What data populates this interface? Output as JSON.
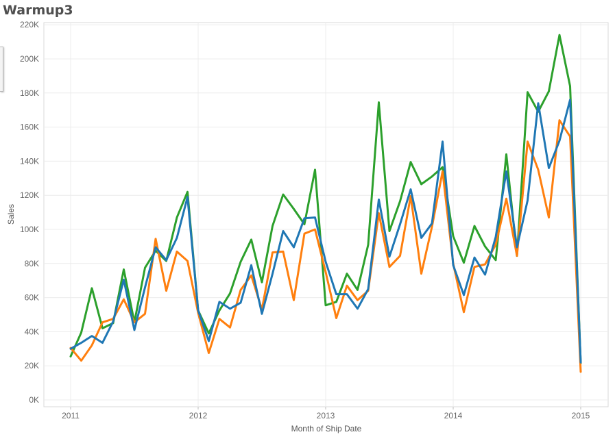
{
  "title": "Warmup3",
  "chart_data": {
    "type": "line",
    "title": "Warmup3",
    "xlabel": "Month of Ship Date",
    "ylabel": "Sales",
    "x_start": "2011-01",
    "x_end": "2015-01",
    "x_ticks": [
      "2011",
      "2012",
      "2013",
      "2014",
      "2015"
    ],
    "y_ticks": [
      "0K",
      "20K",
      "40K",
      "60K",
      "80K",
      "100K",
      "120K",
      "140K",
      "160K",
      "180K",
      "200K",
      "220K"
    ],
    "ylim": [
      0,
      225000
    ],
    "grid": true,
    "legend": "none",
    "x": [
      "2011-01",
      "2011-02",
      "2011-03",
      "2011-04",
      "2011-05",
      "2011-06",
      "2011-07",
      "2011-08",
      "2011-09",
      "2011-10",
      "2011-11",
      "2011-12",
      "2012-01",
      "2012-02",
      "2012-03",
      "2012-04",
      "2012-05",
      "2012-06",
      "2012-07",
      "2012-08",
      "2012-09",
      "2012-10",
      "2012-11",
      "2012-12",
      "2013-01",
      "2013-02",
      "2013-03",
      "2013-04",
      "2013-05",
      "2013-06",
      "2013-07",
      "2013-08",
      "2013-09",
      "2013-10",
      "2013-11",
      "2013-12",
      "2014-01",
      "2014-02",
      "2014-03",
      "2014-04",
      "2014-05",
      "2014-06",
      "2014-07",
      "2014-08",
      "2014-09",
      "2014-10",
      "2014-11",
      "2014-12",
      "2015-01"
    ],
    "series": [
      {
        "color": "#2ca02c",
        "values": [
          25500,
          39500,
          65500,
          42000,
          45000,
          76500,
          45500,
          77500,
          87500,
          81500,
          107000,
          122000,
          52500,
          39000,
          52500,
          62500,
          81000,
          94000,
          69000,
          102000,
          120500,
          112000,
          103000,
          135000,
          55500,
          57500,
          74000,
          64500,
          91000,
          174500,
          99000,
          116500,
          139500,
          126500,
          131000,
          136500,
          96000,
          80500,
          102000,
          90000,
          82000,
          144000,
          84500,
          180500,
          169000,
          181000,
          214000,
          184000,
          21500
        ]
      },
      {
        "color": "#ff7f0e",
        "values": [
          30500,
          23000,
          32000,
          45500,
          47500,
          59000,
          45500,
          50500,
          94500,
          64000,
          87000,
          81500,
          51000,
          27500,
          47500,
          42500,
          64500,
          73000,
          53000,
          86500,
          87000,
          58500,
          97500,
          100000,
          75000,
          48000,
          67000,
          58500,
          64000,
          109500,
          78000,
          84500,
          119500,
          74000,
          101500,
          134000,
          80000,
          51500,
          78000,
          79500,
          91000,
          118000,
          84500,
          151500,
          135000,
          107000,
          164000,
          154500,
          16500
        ]
      },
      {
        "color": "#1f77b4",
        "values": [
          30000,
          33500,
          37500,
          33500,
          46000,
          70500,
          41000,
          66000,
          89500,
          82000,
          95000,
          119000,
          52500,
          34500,
          57500,
          53500,
          57000,
          79000,
          50500,
          74000,
          99000,
          89500,
          106500,
          107000,
          81000,
          62000,
          62000,
          53500,
          65000,
          117500,
          84000,
          103000,
          123500,
          95000,
          103500,
          151500,
          79000,
          61500,
          83500,
          73500,
          95500,
          134000,
          89500,
          117000,
          174000,
          136000,
          152000,
          176000,
          22000
        ]
      }
    ]
  }
}
